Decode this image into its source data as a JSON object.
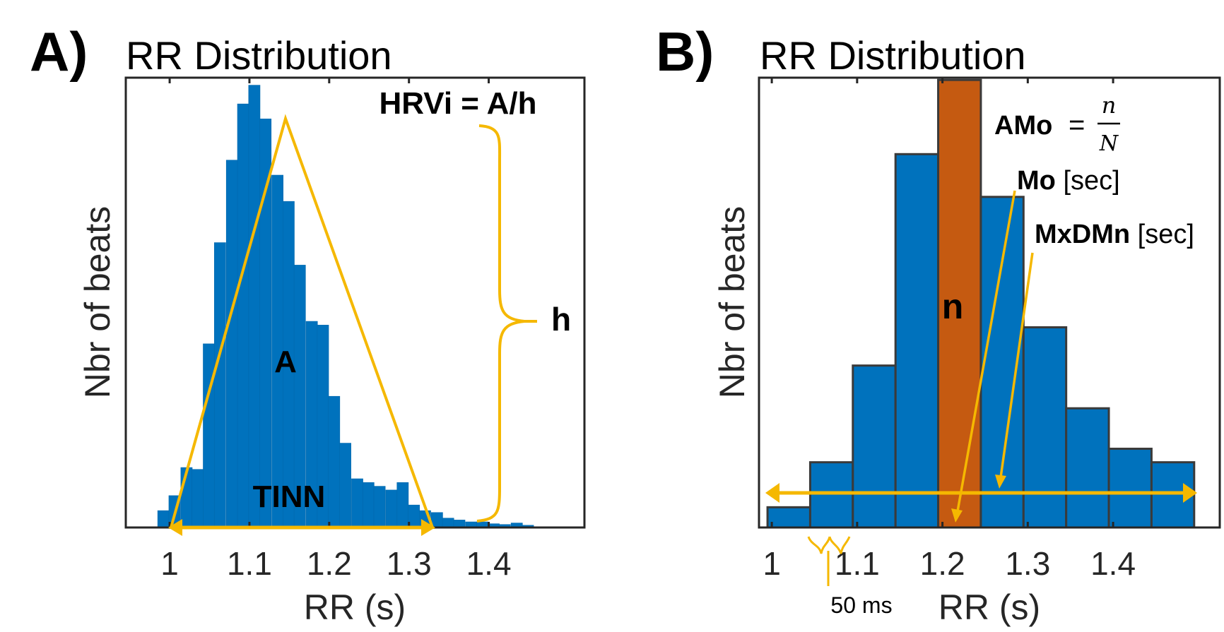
{
  "chart_data": [
    {
      "panel": "A)",
      "type": "bar",
      "title": "RR Distribution",
      "xlabel": "RR (s)",
      "ylabel": "Nbr of beats",
      "xlim": [
        0.945,
        1.52
      ],
      "ylim": [
        0,
        120
      ],
      "xticks": [
        "1",
        "1.1",
        "1.2",
        "1.3",
        "1.4"
      ],
      "bin_width": 0.0143,
      "bin_starts": [
        0.985,
        0.999,
        1.014,
        1.028,
        1.042,
        1.056,
        1.071,
        1.085,
        1.099,
        1.113,
        1.128,
        1.142,
        1.156,
        1.171,
        1.185,
        1.199,
        1.213,
        1.228,
        1.242,
        1.256,
        1.271,
        1.285,
        1.299,
        1.313,
        1.328,
        1.342,
        1.356,
        1.371,
        1.385,
        1.399,
        1.413,
        1.428,
        1.442
      ],
      "values": [
        4.5,
        8.5,
        16,
        15.5,
        49,
        76,
        98,
        113,
        118,
        109,
        94,
        87,
        70,
        55,
        54,
        35,
        22.5,
        13,
        12,
        11,
        10,
        12,
        6,
        4.5,
        4,
        2.5,
        2,
        1.5,
        1.5,
        1,
        0.8,
        1.2,
        0.6
      ],
      "annotations": {
        "formula": "HRVi = A/h",
        "area_label": "A",
        "height_label": "h",
        "base_label": "TINN"
      },
      "colors": {
        "bars": "#0072bd",
        "annotation": "#f5b800"
      }
    },
    {
      "panel": "B)",
      "type": "bar",
      "title": "RR Distribution",
      "xlabel": "RR (s)",
      "ylabel": "Nbr of beats",
      "xlim": [
        0.985,
        1.525
      ],
      "ylim": [
        0,
        100
      ],
      "xticks": [
        "1",
        "1.1",
        "1.2",
        "1.3",
        "1.4"
      ],
      "bin_width": 0.05,
      "bin_starts": [
        0.995,
        1.045,
        1.095,
        1.145,
        1.195,
        1.245,
        1.295,
        1.345,
        1.395,
        1.445
      ],
      "values": [
        4.5,
        14.5,
        36,
        83,
        99.5,
        73.5,
        44.5,
        26.5,
        17.5,
        14.5
      ],
      "highlight_index": 4,
      "annotations": {
        "amo_label": "AMo",
        "amo_eq": "=",
        "amo_num": "n",
        "amo_den": "N",
        "mo_label": "Mo",
        "mo_unit": "[sec]",
        "mxdmn_label": "MxDMn",
        "mxdmn_unit": "[sec]",
        "bar_label": "n",
        "bin_label": "50 ms"
      },
      "colors": {
        "bars": "#0072bd",
        "highlight": "#c55a11",
        "annotation": "#f5b800"
      }
    }
  ]
}
